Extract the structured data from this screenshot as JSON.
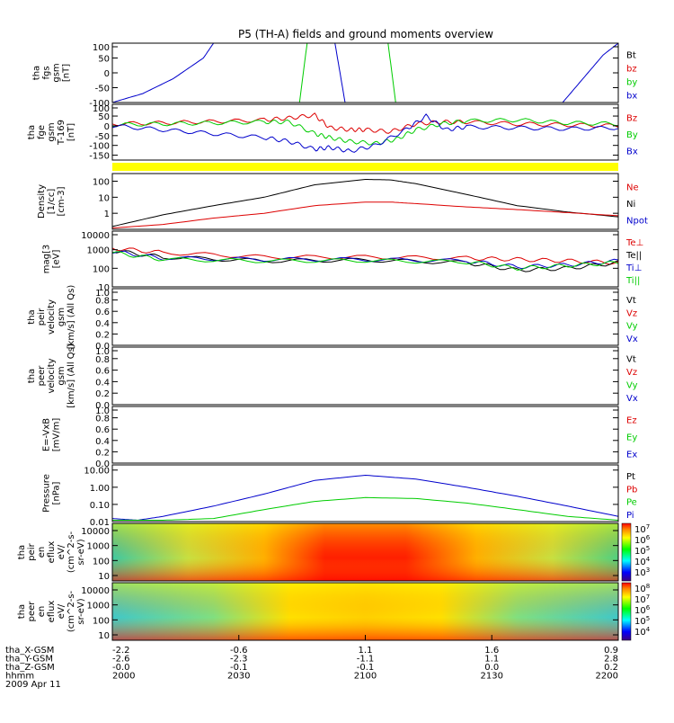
{
  "title": "P5 (TH-A) fields and ground moments overview",
  "colors": {
    "black": "#000000",
    "red": "#dd0000",
    "green": "#00cc00",
    "blue": "#0000cc",
    "yellow": "#ffff00"
  },
  "chart_data": [
    {
      "type": "line",
      "panel": "fgs",
      "ylabel": [
        "tha",
        "fgs",
        "gsm",
        "[nT]"
      ],
      "ylim": [
        -100,
        100
      ],
      "yticks": [
        "100",
        "50",
        "0",
        "-50",
        "-100"
      ],
      "legend": [
        "Bt",
        "bz",
        "by",
        "bx"
      ],
      "series": [
        {
          "name": "bx",
          "color": "blue",
          "x": [
            0,
            0.06,
            0.12,
            0.18,
            0.2
          ],
          "y": [
            -100,
            -70,
            -20,
            50,
            100
          ]
        },
        {
          "name": "bx",
          "color": "blue",
          "x": [
            0.44,
            0.46
          ],
          "y": [
            100,
            -100
          ]
        },
        {
          "name": "bx",
          "color": "blue",
          "x": [
            0.89,
            0.93,
            0.97,
            1.0
          ],
          "y": [
            -100,
            -20,
            60,
            100
          ]
        },
        {
          "name": "by",
          "color": "green",
          "x": [
            0.37,
            0.385
          ],
          "y": [
            -100,
            100
          ]
        },
        {
          "name": "by",
          "color": "green",
          "x": [
            0.545,
            0.56
          ],
          "y": [
            100,
            -100
          ]
        }
      ]
    },
    {
      "type": "line",
      "panel": "fge",
      "ylabel": [
        "tha",
        "fge",
        "gsm",
        "T-169",
        "[nT]"
      ],
      "ylim": [
        -175,
        110
      ],
      "yticks": [
        "100",
        "50",
        "0",
        "-50",
        "-100",
        "-150"
      ],
      "legend": [
        "Bz",
        "By",
        "Bx"
      ],
      "series": [
        {
          "name": "Bz",
          "color": "red",
          "x": [
            0,
            0.1,
            0.2,
            0.3,
            0.35,
            0.4,
            0.43,
            0.47,
            0.5,
            0.55,
            0.6,
            0.65,
            0.7,
            0.8,
            0.9,
            1.0
          ],
          "y": [
            10,
            15,
            22,
            30,
            40,
            55,
            -10,
            -20,
            -20,
            -30,
            10,
            20,
            20,
            10,
            5,
            0
          ]
        },
        {
          "name": "By",
          "color": "green",
          "x": [
            0,
            0.1,
            0.2,
            0.3,
            0.35,
            0.4,
            0.43,
            0.47,
            0.52,
            0.56,
            0.6,
            0.65,
            0.7,
            0.8,
            0.9,
            1.0
          ],
          "y": [
            5,
            10,
            15,
            20,
            20,
            -40,
            -60,
            -80,
            -90,
            -70,
            -20,
            10,
            25,
            30,
            15,
            10
          ]
        },
        {
          "name": "Bx",
          "color": "blue",
          "x": [
            0,
            0.1,
            0.2,
            0.3,
            0.35,
            0.4,
            0.43,
            0.47,
            0.52,
            0.58,
            0.62,
            0.66,
            0.7,
            0.8,
            0.9,
            1.0
          ],
          "y": [
            0,
            -20,
            -40,
            -60,
            -80,
            -120,
            -110,
            -130,
            -100,
            -20,
            50,
            -20,
            -5,
            -10,
            -15,
            -10
          ]
        }
      ]
    },
    {
      "type": "bar",
      "panel": "flag",
      "color": "yellow"
    },
    {
      "type": "line",
      "panel": "density",
      "ylabel": [
        "Density",
        "[1/cc]",
        "[cm-3]"
      ],
      "ylim_log": [
        0.1,
        300
      ],
      "yticks": [
        "100",
        "10",
        "1"
      ],
      "legend": [
        "Ne",
        "Ni",
        "Npot"
      ],
      "series": [
        {
          "name": "Ni",
          "color": "black",
          "x": [
            0,
            0.1,
            0.2,
            0.3,
            0.4,
            0.5,
            0.55,
            0.6,
            0.7,
            0.8,
            0.9,
            1.0
          ],
          "y": [
            0.15,
            0.8,
            3,
            10,
            60,
            130,
            120,
            70,
            15,
            3,
            1.2,
            0.6
          ]
        },
        {
          "name": "Ne",
          "color": "red",
          "x": [
            0,
            0.1,
            0.2,
            0.3,
            0.4,
            0.5,
            0.55,
            0.6,
            0.7,
            0.8,
            0.9,
            1.0
          ],
          "y": [
            0.12,
            0.2,
            0.5,
            1,
            3,
            5,
            5,
            4,
            2.5,
            1.7,
            1.1,
            0.7
          ]
        }
      ]
    },
    {
      "type": "line",
      "panel": "temperature",
      "ylabel": [
        "mag[3",
        "[eV]"
      ],
      "ylim_log": [
        10,
        10000
      ],
      "yticks": [
        "10000",
        "1000",
        "100",
        "10"
      ],
      "legend": [
        "Te⊥",
        "Te||",
        "Ti⊥",
        "Ti||"
      ],
      "series": [
        {
          "name": "Te⊥",
          "color": "red",
          "x": [
            0,
            0.1,
            0.3,
            0.5,
            0.7,
            0.8,
            0.9,
            1.0
          ],
          "y": [
            1200,
            700,
            400,
            400,
            350,
            300,
            250,
            200
          ]
        },
        {
          "name": "Te||",
          "color": "black",
          "x": [
            0,
            0.1,
            0.3,
            0.5,
            0.7,
            0.8,
            0.9,
            1.0
          ],
          "y": [
            900,
            400,
            250,
            280,
            200,
            80,
            100,
            200
          ]
        },
        {
          "name": "Ti⊥",
          "color": "blue",
          "x": [
            0,
            0.1,
            0.3,
            0.5,
            0.7,
            0.8,
            0.9,
            1.0
          ],
          "y": [
            800,
            350,
            300,
            300,
            250,
            120,
            150,
            250
          ]
        },
        {
          "name": "Ti||",
          "color": "green",
          "x": [
            0,
            0.1,
            0.3,
            0.5,
            0.7,
            0.8,
            0.9,
            1.0
          ],
          "y": [
            700,
            300,
            250,
            260,
            220,
            100,
            140,
            200
          ]
        }
      ]
    },
    {
      "type": "line",
      "panel": "peir",
      "ylabel": [
        "tha",
        "peir",
        "velocity",
        "gsm",
        "[km/s] (All Qs)"
      ],
      "ylim": [
        0,
        1
      ],
      "yticks": [
        "1.0",
        "0.8",
        "0.6",
        "0.4",
        "0.2",
        "0.0"
      ],
      "legend": [
        "Vt",
        "Vz",
        "Vy",
        "Vx"
      ],
      "series": []
    },
    {
      "type": "line",
      "panel": "peer",
      "ylabel": [
        "tha",
        "peer",
        "velocity",
        "gsm",
        "[km/s] (All Qs)"
      ],
      "ylim": [
        0,
        1
      ],
      "yticks": [
        "1.0",
        "0.8",
        "0.6",
        "0.4",
        "0.2",
        "0.0"
      ],
      "legend": [
        "Vt",
        "Vz",
        "Vy",
        "Vx"
      ],
      "series": []
    },
    {
      "type": "line",
      "panel": "efield",
      "ylabel": [
        "E=-VxB",
        "[mV/m]"
      ],
      "ylim": [
        0,
        1
      ],
      "yticks": [
        "1.0",
        "0.8",
        "0.6",
        "0.4",
        "0.2",
        "0.0"
      ],
      "legend": [
        "Ez",
        "Ey",
        "Ex"
      ],
      "series": []
    },
    {
      "type": "line",
      "panel": "pressure",
      "ylabel": [
        "Pressure",
        "[nPa]"
      ],
      "ylim_log": [
        0.01,
        20
      ],
      "yticks": [
        "10.00",
        "1.00",
        "0.10",
        "0.01"
      ],
      "legend": [
        "Pt",
        "Pb",
        "Pe",
        "Pi"
      ],
      "series": [
        {
          "name": "Pi",
          "color": "blue",
          "x": [
            0,
            0.05,
            0.1,
            0.2,
            0.3,
            0.4,
            0.5,
            0.6,
            0.7,
            0.8,
            0.9,
            1.0
          ],
          "y": [
            0.015,
            0.012,
            0.02,
            0.08,
            0.4,
            2.5,
            5,
            3,
            1,
            0.3,
            0.08,
            0.02
          ]
        },
        {
          "name": "Pe",
          "color": "green",
          "x": [
            0,
            0.1,
            0.2,
            0.3,
            0.4,
            0.5,
            0.6,
            0.7,
            0.8,
            0.9,
            1.0
          ],
          "y": [
            0.012,
            0.012,
            0.015,
            0.05,
            0.15,
            0.25,
            0.22,
            0.12,
            0.05,
            0.02,
            0.012
          ]
        }
      ]
    },
    {
      "type": "heatmap",
      "panel": "peir_eflux",
      "ylabel": [
        "tha",
        "peir",
        "en",
        "eflux",
        "eV/",
        "(cm^2-s-",
        "sr-eV)"
      ],
      "yticks": [
        "10000",
        "1000",
        "100",
        "10"
      ],
      "colorbar": [
        "10^7",
        "10^6",
        "10^5",
        "10^4",
        "10^3"
      ]
    },
    {
      "type": "heatmap",
      "panel": "peer_eflux",
      "ylabel": [
        "tha",
        "peer",
        "en",
        "eflux",
        "eV/",
        "(cm^2-s-",
        "sr-eV)"
      ],
      "yticks": [
        "10000",
        "1000",
        "100",
        "10"
      ],
      "colorbar": [
        "10^8",
        "10^7",
        "10^6",
        "10^5",
        "10^4"
      ]
    }
  ],
  "xaxis": {
    "rows": [
      {
        "label": "tha_X-GSM",
        "values": [
          "-2.2",
          "-0.6",
          "1.1",
          "1.6",
          "0.9"
        ]
      },
      {
        "label": "tha_Y-GSM",
        "values": [
          "-2.6",
          "-2.3",
          "-1.1",
          "1.1",
          "2.8"
        ]
      },
      {
        "label": "tha_Z-GSM",
        "values": [
          "-0.0",
          "-0.1",
          "-0.1",
          "0.0",
          "0.2"
        ]
      },
      {
        "label": "hhmm",
        "values": [
          "2000",
          "2030",
          "2100",
          "2130",
          "2200"
        ]
      }
    ],
    "date": "2009 Apr 11"
  }
}
